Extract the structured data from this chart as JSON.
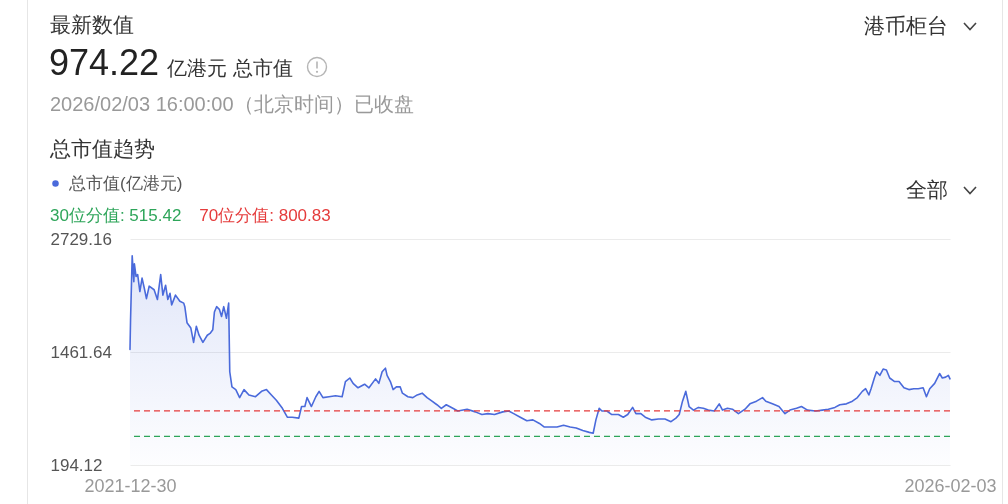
{
  "chart_data": {
    "type": "area",
    "title": "总市值趋势",
    "annotations": [
      "最新数值",
      "974.22",
      "亿港元 总市值",
      "2026/02/03 16:00:00（北京时间）已收盘",
      "港币柜台",
      "全部"
    ],
    "legend": "top left",
    "grid": "y",
    "xlim": [
      "2021-12-30",
      "2026-02-03"
    ],
    "xticks": [
      "2021-12-30",
      "2026-02-03"
    ],
    "ylim": [
      194.12,
      2729.16
    ],
    "yticks": [
      194.12,
      1461.64,
      2729.16
    ],
    "ref_lines": [
      {
        "axis": "y",
        "value": 515.42,
        "label": "30位分值: 515.42",
        "color": "#2ea55a",
        "line_style": "dashed"
      },
      {
        "axis": "y",
        "value": 800.83,
        "label": "70位分值: 800.83",
        "color": "#e53b3b",
        "line_style": "dashed"
      }
    ],
    "x": [
      "2021-12-30",
      "2021-12-31",
      "2022-01-03",
      "2022-01-06",
      "2022-01-07",
      "2022-01-10",
      "2022-01-13",
      "2022-01-17",
      "2022-01-21",
      "2022-01-25",
      "2022-01-29",
      "2022-02-03",
      "2022-02-12",
      "2022-02-18",
      "2022-02-24",
      "2022-02-28",
      "2022-03-05",
      "2022-03-09",
      "2022-03-13",
      "2022-03-16",
      "2022-03-23",
      "2022-03-31",
      "2022-04-07",
      "2022-04-09",
      "2022-04-13",
      "2022-04-20",
      "2022-04-25",
      "2022-04-30",
      "2022-05-05",
      "2022-05-12",
      "2022-05-20",
      "2022-05-25",
      "2022-05-30",
      "2022-06-02",
      "2022-06-06",
      "2022-06-11",
      "2022-06-15",
      "2022-06-19",
      "2022-06-24",
      "2022-06-28",
      "2022-06-30",
      "2022-07-04",
      "2022-07-11",
      "2022-07-18",
      "2022-07-26",
      "2022-08-04",
      "2022-08-16",
      "2022-08-27",
      "2022-09-05",
      "2022-09-14",
      "2022-09-23",
      "2022-10-04",
      "2022-10-13",
      "2022-10-22",
      "2022-11-03",
      "2022-11-08",
      "2022-11-14",
      "2022-11-18",
      "2022-11-26",
      "2022-12-04",
      "2022-12-10",
      "2022-12-17",
      "2022-12-28",
      "2023-01-09",
      "2023-01-21",
      "2023-01-27",
      "2023-02-04",
      "2023-02-10",
      "2023-02-19",
      "2023-03-03",
      "2023-03-11",
      "2023-03-23",
      "2023-03-29",
      "2023-04-04",
      "2023-04-10",
      "2023-04-13",
      "2023-04-19",
      "2023-04-24",
      "2023-04-30",
      "2023-05-07",
      "2023-05-11",
      "2023-05-21",
      "2023-05-30",
      "2023-06-07",
      "2023-06-16",
      "2023-06-25",
      "2023-07-04",
      "2023-07-13",
      "2023-07-21",
      "2023-07-30",
      "2023-08-11",
      "2023-08-20",
      "2023-09-06",
      "2023-09-21",
      "2023-10-03",
      "2023-10-14",
      "2023-10-26",
      "2023-11-10",
      "2023-11-21",
      "2023-11-30",
      "2023-12-12",
      "2023-12-24",
      "2024-01-04",
      "2024-01-16",
      "2024-01-25",
      "2024-02-06",
      "2024-02-17",
      "2024-02-29",
      "2024-03-12",
      "2024-03-23",
      "2024-04-04",
      "2024-04-16",
      "2024-04-23",
      "2024-04-28",
      "2024-05-04",
      "2024-05-09",
      "2024-05-18",
      "2024-05-27",
      "2024-06-08",
      "2024-06-17",
      "2024-06-25",
      "2024-07-04",
      "2024-07-10",
      "2024-07-19",
      "2024-07-27",
      "2024-08-08",
      "2024-08-20",
      "2024-09-01",
      "2024-09-12",
      "2024-09-21",
      "2024-09-27",
      "2024-10-03",
      "2024-10-09",
      "2024-10-15",
      "2024-10-23",
      "2024-11-01",
      "2024-11-10",
      "2024-11-19",
      "2024-11-30",
      "2024-12-09",
      "2024-12-15",
      "2024-12-24",
      "2025-01-02",
      "2025-01-13",
      "2025-01-25",
      "2025-02-03",
      "2025-02-15",
      "2025-02-26",
      "2025-03-04",
      "2025-03-16",
      "2025-03-28",
      "2025-04-08",
      "2025-04-17",
      "2025-04-29",
      "2025-05-08",
      "2025-05-19",
      "2025-06-03",
      "2025-06-15",
      "2025-06-26",
      "2025-07-08",
      "2025-07-17",
      "2025-07-29",
      "2025-08-09",
      "2025-08-18",
      "2025-08-27",
      "2025-09-02",
      "2025-09-08",
      "2025-09-12",
      "2025-09-18",
      "2025-09-22",
      "2025-09-28",
      "2025-10-04",
      "2025-10-10",
      "2025-10-16",
      "2025-10-25",
      "2025-11-02",
      "2025-11-11",
      "2025-11-20",
      "2025-11-29",
      "2025-12-07",
      "2025-12-16",
      "2025-12-22",
      "2025-12-28",
      "2026-01-06",
      "2026-01-15",
      "2026-01-20",
      "2026-01-26",
      "2026-01-31",
      "2026-02-03"
    ],
    "series": [
      {
        "name": "总市值(亿港元)",
        "color": "#4a6adb",
        "values": [
          1490,
          1820,
          2540,
          2250,
          2450,
          2310,
          2330,
          2140,
          2290,
          2180,
          2060,
          2200,
          2160,
          2050,
          2330,
          2100,
          2210,
          2050,
          2120,
          1990,
          2100,
          2030,
          2010,
          1970,
          1790,
          1730,
          1570,
          1750,
          1650,
          1570,
          1650,
          1670,
          1710,
          1910,
          1970,
          1940,
          1860,
          1970,
          1840,
          2010,
          1240,
          1070,
          1040,
          950,
          1040,
          980,
          960,
          1020,
          1040,
          980,
          920,
          830,
          730,
          730,
          720,
          850,
          850,
          950,
          850,
          960,
          1020,
          950,
          960,
          970,
          960,
          1130,
          1170,
          1110,
          1060,
          1100,
          1060,
          1160,
          1110,
          1240,
          1280,
          1200,
          1130,
          1040,
          1070,
          1070,
          1000,
          960,
          950,
          980,
          1000,
          950,
          910,
          870,
          830,
          870,
          830,
          800,
          820,
          790,
          760,
          770,
          760,
          790,
          800,
          770,
          730,
          690,
          700,
          660,
          620,
          620,
          620,
          640,
          620,
          610,
          580,
          560,
          550,
          700,
          830,
          800,
          800,
          760,
          760,
          730,
          760,
          840,
          770,
          770,
          730,
          700,
          710,
          710,
          680,
          720,
          760,
          910,
          1020,
          850,
          810,
          840,
          830,
          810,
          800,
          880,
          810,
          830,
          820,
          770,
          820,
          880,
          910,
          950,
          910,
          880,
          850,
          770,
          810,
          830,
          850,
          810,
          800,
          810,
          820,
          840,
          870,
          880,
          910,
          950,
          1020,
          1050,
          980,
          1050,
          1170,
          1240,
          1200,
          1270,
          1260,
          1170,
          1130,
          1130,
          1060,
          1040,
          1050,
          1050,
          1060,
          960,
          1050,
          1110,
          1220,
          1170,
          1180,
          1200,
          1160
        ]
      }
    ]
  }
}
